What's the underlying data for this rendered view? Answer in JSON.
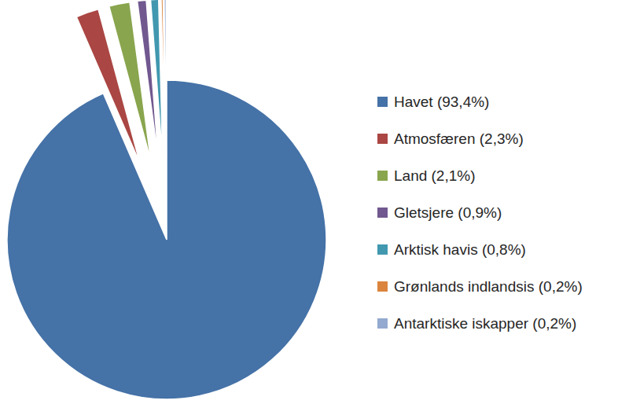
{
  "chart_data": {
    "type": "pie",
    "categories": [
      "Havet (93,4%)",
      "Atmosfæren (2,3%)",
      "Land (2,1%)",
      "Gletsjere (0,9%)",
      "Arktisk havis (0,8%)",
      "Grønlands indlandsis (0,2%)",
      "Antarktiske iskapper (0,2%)"
    ],
    "values": [
      93.4,
      2.3,
      2.1,
      0.9,
      0.8,
      0.2,
      0.2
    ],
    "colors": [
      "#4572a7",
      "#aa4643",
      "#89a54e",
      "#71588f",
      "#4198af",
      "#db843d",
      "#93a9cf"
    ],
    "legend": "right"
  }
}
